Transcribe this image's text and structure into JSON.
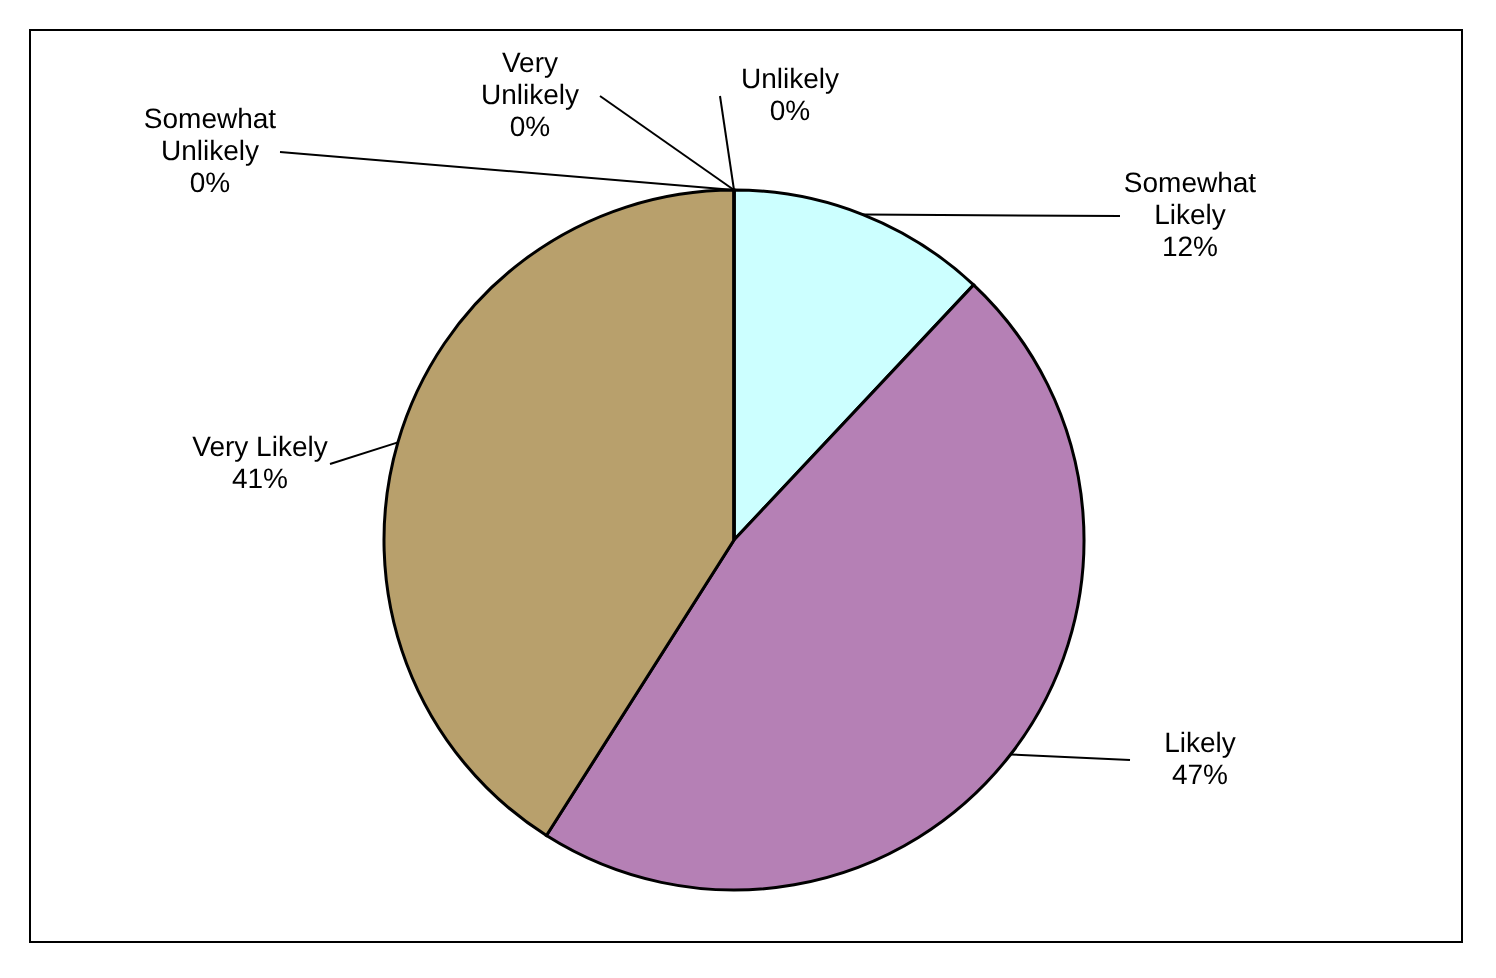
{
  "chart_data": {
    "type": "pie",
    "categories": [
      "Unlikely",
      "Somewhat Likely",
      "Likely",
      "Very Likely",
      "Somewhat Unlikely",
      "Very Unlikely"
    ],
    "values": [
      0,
      12,
      47,
      41,
      0,
      0
    ],
    "colors": [
      "#ffffff",
      "#ccffff",
      "#b580b5",
      "#b8a06c",
      "#ffffff",
      "#ffffff"
    ],
    "value_labels": [
      "0%",
      "12%",
      "47%",
      "41%",
      "0%",
      "0%"
    ]
  }
}
